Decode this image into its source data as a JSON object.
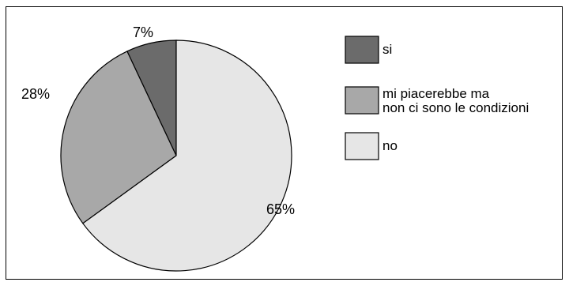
{
  "chart_data": {
    "type": "pie",
    "slices": [
      {
        "label": "si",
        "value": 7,
        "value_label": "7%",
        "color": "#6b6b6b"
      },
      {
        "label": "mi piacerebbe ma non ci sono le condizioni",
        "legend_lines": [
          "mi piacerebbe ma",
          "non ci sono le condizioni"
        ],
        "value": 28,
        "value_label": "28%",
        "color": "#a8a8a8"
      },
      {
        "label": "no",
        "value": 65,
        "value_label": "65%",
        "color": "#e6e6e6"
      }
    ],
    "legend_placement": "right"
  }
}
